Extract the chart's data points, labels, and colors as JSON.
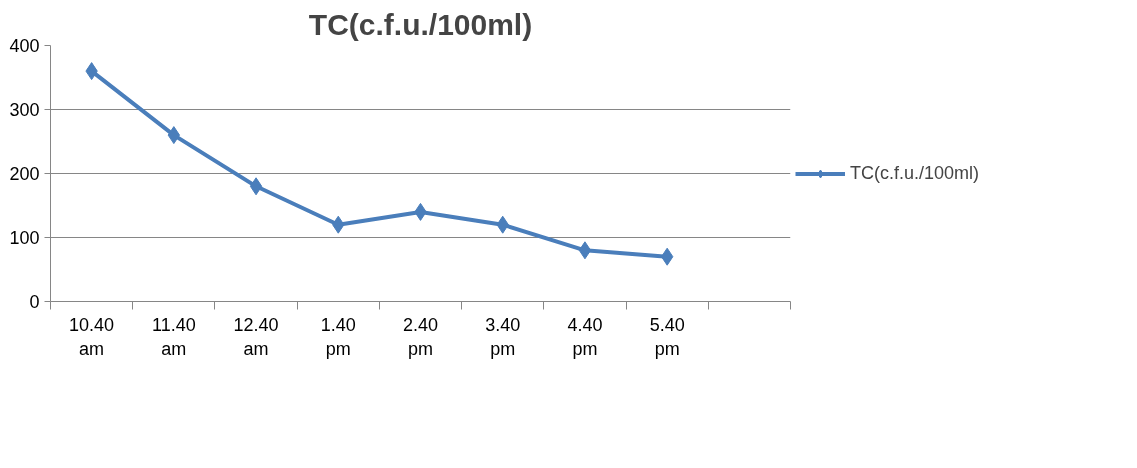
{
  "chart_data": {
    "type": "line",
    "title": "TC(c.f.u./100ml)",
    "categories": [
      "10.40 am",
      "11.40 am",
      "12.40 am",
      "1.40 pm",
      "2.40 pm",
      "3.40 pm",
      "4.40 pm",
      "5.40 pm",
      null
    ],
    "series": [
      {
        "name": "TC(c.f.u./100ml)",
        "color": "#4a7ebb",
        "values": [
          360,
          260,
          180,
          120,
          140,
          120,
          80,
          70,
          null
        ]
      }
    ],
    "ylim": [
      0,
      400
    ],
    "yticks": [
      0,
      100,
      200,
      300,
      400
    ],
    "grid": "y",
    "legend": "right",
    "marker": "diamond",
    "line_style": "solid"
  }
}
